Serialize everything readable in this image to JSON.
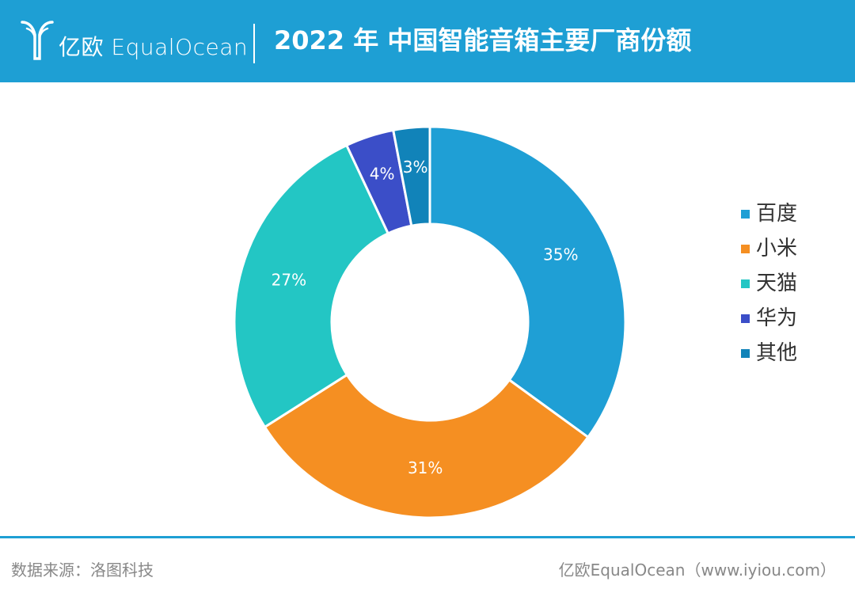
{
  "header": {
    "brand_cn": "亿欧",
    "brand_en": "EqualOcean",
    "title": "2022 年 中国智能音箱主要厂商份额"
  },
  "colors": {
    "header_bg": "#1e9fd4",
    "baidu": "#1f9fd5",
    "xiaomi": "#f58f22",
    "tmall": "#23c6c4",
    "huawei": "#3b4ec8",
    "other": "#1183b9"
  },
  "chart_data": {
    "type": "pie",
    "donut": true,
    "title": "2022 年 中国智能音箱主要厂商份额",
    "categories": [
      "百度",
      "小米",
      "天猫",
      "华为",
      "其他"
    ],
    "values": [
      35,
      31,
      27,
      4,
      3
    ],
    "labels": [
      "35%",
      "31%",
      "27%",
      "4%",
      "3%"
    ],
    "colors": [
      "#1f9fd5",
      "#f58f22",
      "#23c6c4",
      "#3b4ec8",
      "#1183b9"
    ],
    "legend": "right"
  },
  "footer": {
    "source": "数据来源：洛图科技",
    "credit": "亿欧EqualOcean（www.iyiou.com）"
  }
}
